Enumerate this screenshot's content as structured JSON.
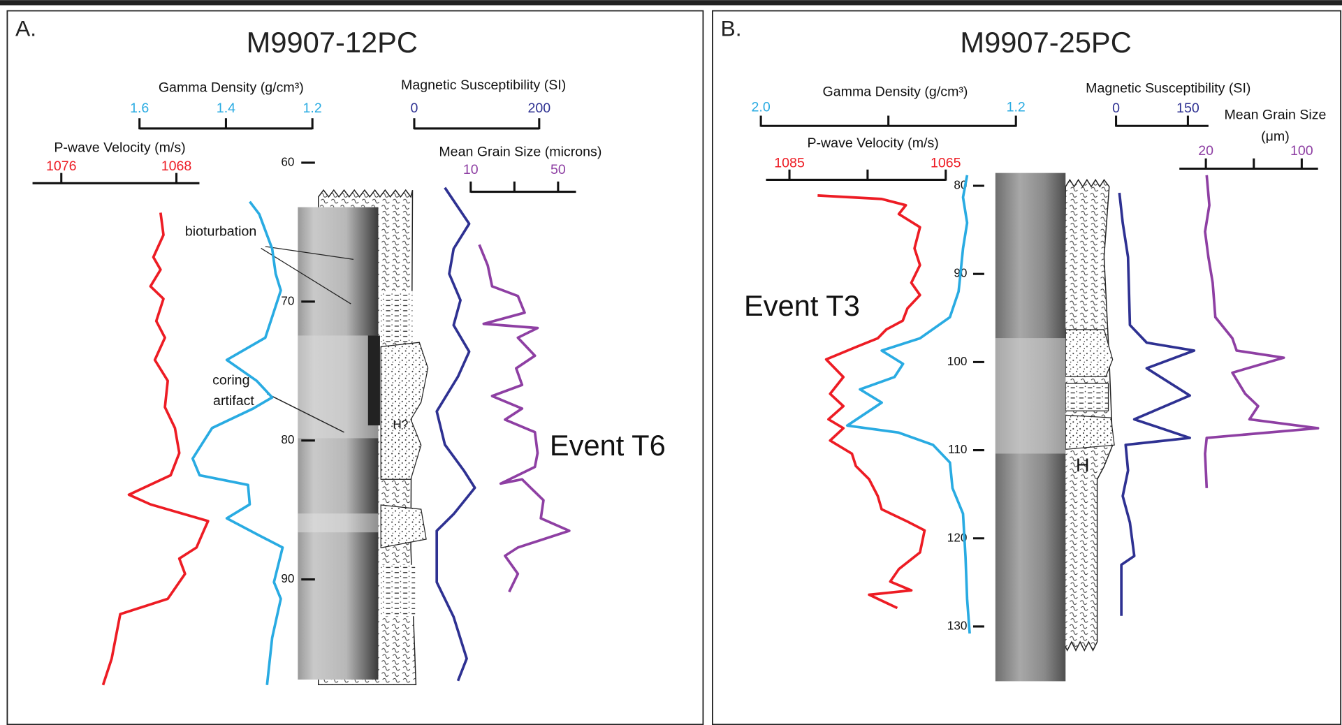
{
  "chart_data": [
    {
      "type": "core-log",
      "label": "A.",
      "title": "M9907-12PC",
      "depth_axis": {
        "ylim": [
          60,
          90
        ],
        "yticks": [
          60,
          70,
          80,
          90
        ]
      },
      "scales": [
        {
          "title": "Gamma Density (g/cm³)",
          "color": "#29abe2",
          "xlim": [
            1.6,
            1.2
          ],
          "xticks": [
            1.6,
            1.4,
            1.2
          ],
          "depth": [
            62.8,
            63.7,
            66.2,
            68.0,
            69.2,
            71.1,
            72.6,
            74.2,
            75.7,
            76.9,
            77.7,
            79.1,
            81.3,
            82.5,
            83.2,
            84.6,
            85.6,
            86.8,
            87.7,
            90.2,
            91.4,
            94.2,
            97.6
          ],
          "values": [
            1.345,
            1.323,
            1.293,
            1.285,
            1.273,
            1.293,
            1.309,
            1.398,
            1.329,
            1.293,
            1.337,
            1.432,
            1.477,
            1.461,
            1.349,
            1.345,
            1.398,
            1.325,
            1.269,
            1.289,
            1.273,
            1.293,
            1.305
          ]
        },
        {
          "title": "P-wave Velocity (m/s)",
          "color": "#ed1c24",
          "xlim": [
            1078,
            1066.4
          ],
          "xticks": [
            1076,
            1068
          ],
          "depth": [
            63.6,
            65.2,
            66.8,
            67.7,
            68.9,
            69.8,
            71.4,
            72.6,
            74.2,
            75.7,
            77.6,
            79.1,
            80.9,
            82.5,
            83.9,
            84.6,
            85.8,
            86.5,
            87.7,
            88.5,
            89.6,
            91.4,
            92.5,
            95.7,
            97.6
          ],
          "values": [
            1069.1,
            1068.9,
            1069.6,
            1069.1,
            1069.8,
            1068.9,
            1069.4,
            1068.8,
            1069.5,
            1068.6,
            1068.8,
            1068.1,
            1067.8,
            1068.4,
            1071.3,
            1069.8,
            1065.8,
            1066.1,
            1066.6,
            1067.8,
            1067.4,
            1068.6,
            1071.9,
            1072.5,
            1073.1
          ]
        },
        {
          "title": "Magnetic Susceptibility (SI)",
          "color": "#2e3192",
          "xlim": [
            0,
            200
          ],
          "xticks": [
            0,
            200
          ],
          "depth": [
            61.8,
            64.4,
            66.2,
            68.0,
            69.9,
            71.7,
            73.6,
            75.4,
            77.9,
            80.3,
            82.2,
            83.4,
            85.3,
            86.5,
            90.2,
            92.7,
            95.7,
            97.3
          ],
          "values": [
            49,
            88,
            63,
            56,
            74,
            63,
            88,
            70,
            36,
            49,
            80,
            97,
            63,
            36,
            36,
            63,
            84,
            70
          ]
        },
        {
          "title": "Mean Grain Size (microns)",
          "color": "#8e3fa3",
          "xlim": [
            10,
            58.2
          ],
          "xticks": [
            10,
            50
          ],
          "minor_xticks": [
            30
          ],
          "depth": [
            65.9,
            67.4,
            68.9,
            69.6,
            70.8,
            71.6,
            71.9,
            72.6,
            73.9,
            74.8,
            76.0,
            76.8,
            77.7,
            78.5,
            79.4,
            80.9,
            81.9,
            83.1,
            82.8,
            84.3,
            85.6,
            86.5,
            87.7,
            88.3,
            89.6,
            90.9
          ],
          "values": [
            13.9,
            17.8,
            19.8,
            31.6,
            34.7,
            15.9,
            40.6,
            31.6,
            39.4,
            30.8,
            33.5,
            19.8,
            33.5,
            25.7,
            39.4,
            40.6,
            39.4,
            23.7,
            33.5,
            43.3,
            42.1,
            55.1,
            31.6,
            25.7,
            31.6,
            27.6
          ]
        }
      ],
      "annotations": [
        "bioturbation",
        "coring",
        "artifact",
        "Event T6",
        "H?"
      ]
    },
    {
      "type": "core-log",
      "label": "B.",
      "title": "M9907-25PC",
      "depth_axis": {
        "ylim": [
          80,
          130
        ],
        "yticks": [
          80,
          90,
          100,
          110,
          120,
          130
        ]
      },
      "scales": [
        {
          "title": "Gamma Density (g/cm³)",
          "color": "#29abe2",
          "xlim": [
            2.0,
            1.2
          ],
          "xticks": [
            {
              "value": 2.0,
              "label": "2.0"
            },
            1.2
          ],
          "minor_xticks": [
            1.6
          ],
          "depth": [
            78.8,
            81.3,
            84.2,
            87.1,
            90.0,
            92.0,
            94.9,
            97.3,
            98.7,
            100.2,
            101.7,
            103.1,
            104.6,
            107.2,
            108.0,
            109.4,
            111.4,
            114.3,
            117.2,
            122.1,
            126.9,
            130.8
          ],
          "values": [
            1.353,
            1.366,
            1.353,
            1.366,
            1.374,
            1.38,
            1.407,
            1.501,
            1.621,
            1.554,
            1.581,
            1.689,
            1.621,
            1.729,
            1.568,
            1.46,
            1.407,
            1.399,
            1.366,
            1.358,
            1.353,
            1.345
          ]
        },
        {
          "title": "P-wave Velocity (m/s)",
          "color": "#ed1c24",
          "xlim": [
            1088,
            1065
          ],
          "xticks": [
            1085,
            1065
          ],
          "minor_xticks": [
            1075
          ],
          "depth": [
            81.1,
            81.5,
            82.2,
            83.2,
            84.7,
            87.1,
            89.0,
            91.0,
            92.4,
            93.9,
            95.3,
            96.3,
            97.3,
            98.3,
            99.7,
            101.7,
            103.6,
            105.0,
            106.5,
            107.5,
            108.9,
            110.4,
            111.8,
            113.3,
            115.2,
            116.7,
            118.1,
            119.1,
            121.6,
            123.5,
            124.9,
            125.9,
            126.4,
            127.9
          ],
          "values": [
            1081.4,
            1073.2,
            1070.1,
            1071.0,
            1068.3,
            1069.0,
            1068.3,
            1069.4,
            1068.3,
            1069.9,
            1070.5,
            1072.6,
            1073.7,
            1076.5,
            1080.3,
            1078.1,
            1079.8,
            1078.1,
            1080.0,
            1078.1,
            1079.8,
            1077.0,
            1076.5,
            1074.8,
            1073.7,
            1073.2,
            1069.9,
            1067.7,
            1068.3,
            1071.0,
            1072.1,
            1069.4,
            1074.8,
            1071.2
          ]
        },
        {
          "title": "Magnetic Susceptibility (SI)",
          "color": "#2e3192",
          "xlim": [
            0,
            193
          ],
          "xticks": [
            0,
            150
          ],
          "depth": [
            80.8,
            84.2,
            88.1,
            95.8,
            97.8,
            98.7,
            100.7,
            103.8,
            106.5,
            108.6,
            109.4,
            112.3,
            115.2,
            118.2,
            122.0,
            123.0,
            128.8
          ],
          "values": [
            7,
            14,
            25,
            29,
            64,
            163,
            64,
            154,
            38,
            154,
            20,
            25,
            14,
            29,
            38,
            11,
            11
          ]
        },
        {
          "title": [
            "Mean Grain Size",
            "(μm)"
          ],
          "color": "#8e3fa3",
          "xlim": [
            -2.1,
            113.6
          ],
          "xticks": [
            20,
            100
          ],
          "minor_xticks": [
            60
          ],
          "depth": [
            78.8,
            82.2,
            85.2,
            88.1,
            91.0,
            94.9,
            97.3,
            98.7,
            99.5,
            101.2,
            103.6,
            105.0,
            106.5,
            107.5,
            108.6,
            110.4,
            114.3
          ],
          "values": [
            20.7,
            22.9,
            19.3,
            22.1,
            25.7,
            27.9,
            42.1,
            45.7,
            85.0,
            42.1,
            52.8,
            63.6,
            56.4,
            113.5,
            20.7,
            19.3,
            20.7
          ]
        }
      ],
      "annotations": [
        "Event T3",
        "H"
      ]
    }
  ]
}
